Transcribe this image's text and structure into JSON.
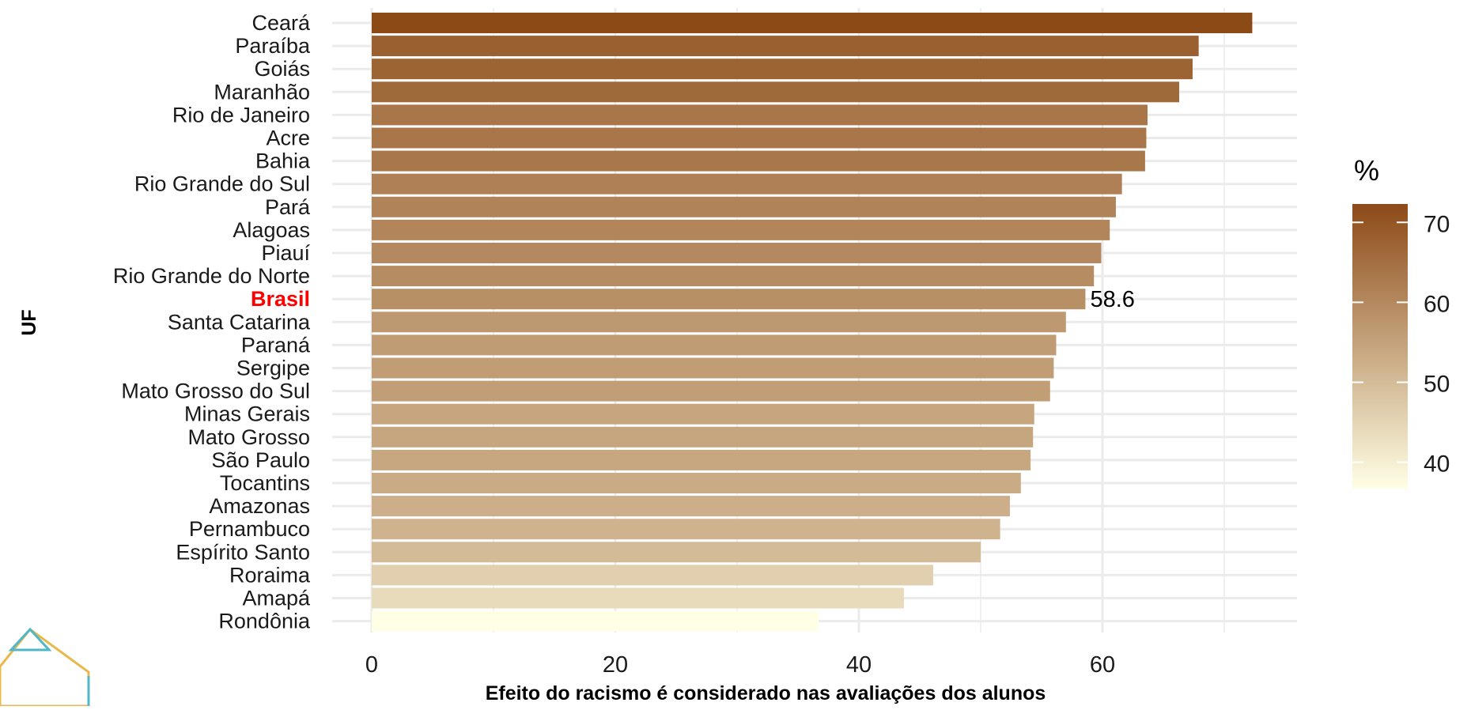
{
  "chart_data": {
    "type": "bar",
    "orientation": "horizontal",
    "xlabel": "Efeito do racismo é considerado nas avaliações dos alunos",
    "ylabel": "UF",
    "xlim": [
      0,
      76
    ],
    "xticks": [
      0,
      20,
      40,
      60
    ],
    "grid": true,
    "categories": [
      "Ceará",
      "Paraíba",
      "Goiás",
      "Maranhão",
      "Rio de Janeiro",
      "Acre",
      "Bahia",
      "Rio Grande do Sul",
      "Pará",
      "Alagoas",
      "Piauí",
      "Rio Grande do Norte",
      "Brasil",
      "Santa Catarina",
      "Paraná",
      "Sergipe",
      "Mato Grosso do Sul",
      "Minas Gerais",
      "Mato Grosso",
      "São Paulo",
      "Tocantins",
      "Amazonas",
      "Pernambuco",
      "Espírito Santo",
      "Roraima",
      "Amapá",
      "Rondônia"
    ],
    "values": [
      72.3,
      67.9,
      67.4,
      66.3,
      63.7,
      63.6,
      63.5,
      61.6,
      61.1,
      60.6,
      59.9,
      59.3,
      58.6,
      57.0,
      56.2,
      56.0,
      55.7,
      54.4,
      54.3,
      54.1,
      53.3,
      52.4,
      51.6,
      50.0,
      46.1,
      43.7,
      36.7
    ],
    "highlight": {
      "category": "Brasil",
      "color": "#ff0000",
      "label": "58.6"
    },
    "legend": {
      "title": "%",
      "placement": "right",
      "min": 36.7,
      "max": 72.3,
      "ticks": [
        40,
        50,
        60,
        70
      ],
      "color_low": "#ffffe5",
      "color_high": "#8c4a17"
    }
  }
}
